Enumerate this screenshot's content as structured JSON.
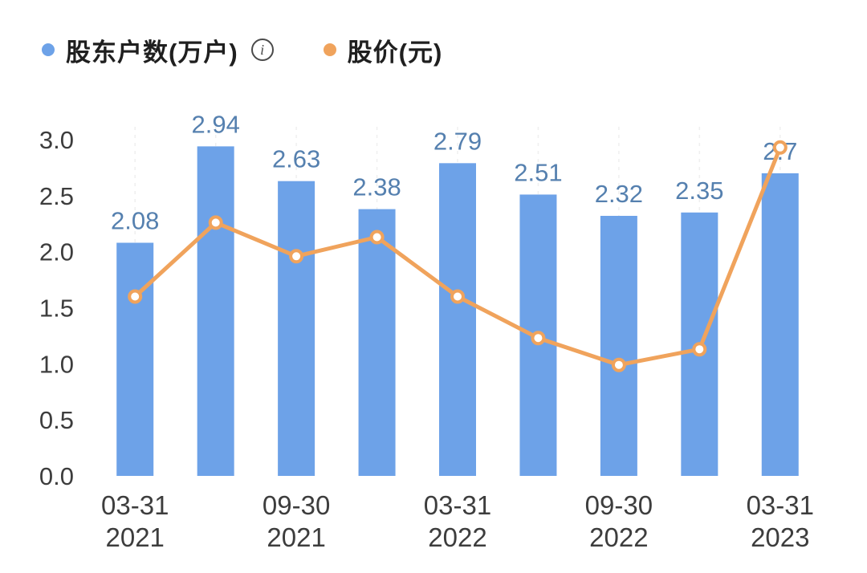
{
  "legend": {
    "series1_label": "股东户数(万户)",
    "info_glyph": "i",
    "series2_label": "股价(元)"
  },
  "colors": {
    "bar": "#6da2e8",
    "bar_label": "#5580af",
    "line": "#f0a35c",
    "point_fill": "#ffffff",
    "axis_text": "#3d3d3d",
    "grid": "#efefef"
  },
  "chart_data": {
    "type": "bar+line combo",
    "ylim": [
      0,
      3.0
    ],
    "y_ticks": [
      "0.0",
      "0.5",
      "1.0",
      "1.5",
      "2.0",
      "2.5",
      "3.0"
    ],
    "x_ticks": [
      {
        "index": 0,
        "line1": "03-31",
        "line2": "2021"
      },
      {
        "index": 2,
        "line1": "09-30",
        "line2": "2021"
      },
      {
        "index": 4,
        "line1": "03-31",
        "line2": "2022"
      },
      {
        "index": 6,
        "line1": "09-30",
        "line2": "2022"
      },
      {
        "index": 8,
        "line1": "03-31",
        "line2": "2023"
      }
    ],
    "series": [
      {
        "name": "股东户数(万户)",
        "type": "bar",
        "values": [
          2.08,
          2.94,
          2.63,
          2.38,
          2.79,
          2.51,
          2.32,
          2.35,
          2.7
        ],
        "labels": [
          "2.08",
          "2.94",
          "2.63",
          "2.38",
          "2.79",
          "2.51",
          "2.32",
          "2.35",
          "2.7"
        ]
      },
      {
        "name": "股价(元)",
        "type": "line",
        "values": [
          1.6,
          2.26,
          1.96,
          2.13,
          1.6,
          1.23,
          0.99,
          1.13,
          2.93
        ]
      }
    ],
    "grid": "faint dashed vertical",
    "legend_position": "top-left"
  }
}
